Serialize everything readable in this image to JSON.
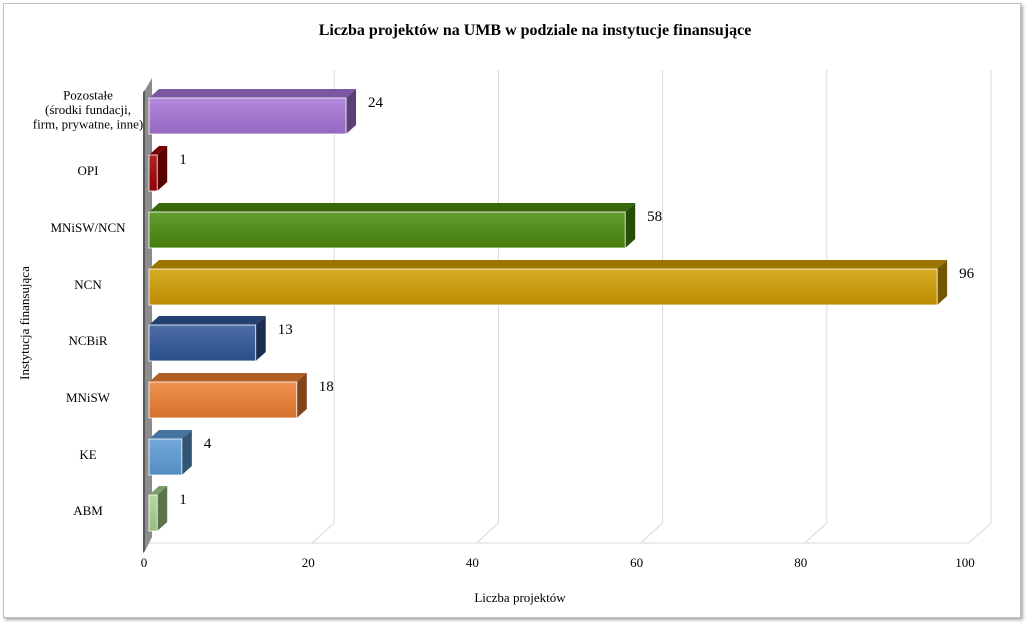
{
  "chart_data": {
    "type": "bar",
    "orientation": "horizontal",
    "title": "Liczba projektów na UMB w podziale na instytucje finansujące",
    "xlabel": "Liczba projektów",
    "ylabel": "Instytucja finansująca",
    "xlim": [
      0,
      100
    ],
    "xticks": [
      0,
      20,
      40,
      60,
      80,
      100
    ],
    "grid": true,
    "legend": "none",
    "categories": [
      {
        "label": [
          "Pozostałe",
          "(środki fundacji,",
          "firm, prywatne, inne)"
        ],
        "value": 24,
        "color": "#a474d6"
      },
      {
        "label": [
          "OPI"
        ],
        "value": 1,
        "color": "#a00000"
      },
      {
        "label": [
          "MNiSW/NCN"
        ],
        "value": 58,
        "color": "#4a8a0c"
      },
      {
        "label": [
          "NCN"
        ],
        "value": 96,
        "color": "#d09c00"
      },
      {
        "label": [
          "NCBiR"
        ],
        "value": 13,
        "color": "#2f5597"
      },
      {
        "label": [
          "MNiSW"
        ],
        "value": 18,
        "color": "#ed7d31"
      },
      {
        "label": [
          "KE"
        ],
        "value": 4,
        "color": "#5b9bd5"
      },
      {
        "label": [
          "ABM"
        ],
        "value": 1,
        "color": "#a9d18e"
      }
    ]
  }
}
